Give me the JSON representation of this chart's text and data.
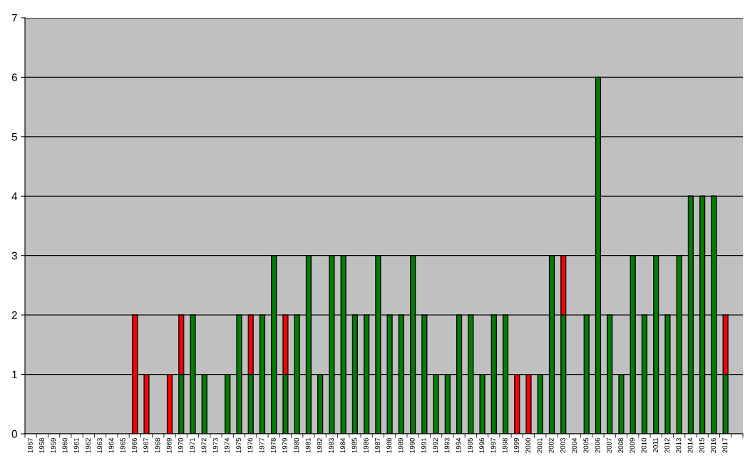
{
  "chart_data": {
    "type": "bar",
    "stacked": true,
    "categories": [
      "1957",
      "1958",
      "1959",
      "1960",
      "1961",
      "1962",
      "1963",
      "1964",
      "1965",
      "1966",
      "1967",
      "1968",
      "1969",
      "1970",
      "1971",
      "1972",
      "1973",
      "1974",
      "1975",
      "1976",
      "1977",
      "1978",
      "1979",
      "1980",
      "1981",
      "1982",
      "1983",
      "1984",
      "1985",
      "1986",
      "1987",
      "1988",
      "1989",
      "1990",
      "1991",
      "1992",
      "1993",
      "1994",
      "1995",
      "1996",
      "1997",
      "1998",
      "1999",
      "2000",
      "2001",
      "2002",
      "2003",
      "2004",
      "2005",
      "2006",
      "2007",
      "2008",
      "2009",
      "2010",
      "2011",
      "2012",
      "2013",
      "2014",
      "2015",
      "2016",
      "2017",
      null
    ],
    "series": [
      {
        "color": "#008000",
        "values": [
          0,
          0,
          0,
          0,
          0,
          0,
          0,
          0,
          0,
          0,
          0,
          0,
          0,
          1,
          2,
          1,
          0,
          1,
          2,
          1,
          2,
          3,
          1,
          2,
          3,
          1,
          3,
          3,
          2,
          2,
          3,
          2,
          2,
          3,
          2,
          1,
          1,
          2,
          2,
          1,
          2,
          2,
          0,
          0,
          1,
          3,
          2,
          0,
          2,
          6,
          2,
          1,
          3,
          2,
          3,
          2,
          3,
          4,
          4,
          4,
          1,
          0
        ]
      },
      {
        "color": "#ff0000",
        "values": [
          0,
          0,
          0,
          0,
          0,
          0,
          0,
          0,
          0,
          2,
          1,
          0,
          1,
          1,
          0,
          0,
          0,
          0,
          0,
          1,
          0,
          0,
          1,
          0,
          0,
          0,
          0,
          0,
          0,
          0,
          0,
          0,
          0,
          0,
          0,
          0,
          0,
          0,
          0,
          0,
          0,
          0,
          1,
          1,
          0,
          0,
          1,
          0,
          0,
          0,
          0,
          0,
          0,
          0,
          0,
          0,
          0,
          0,
          0,
          0,
          1,
          0
        ]
      }
    ],
    "ylim": [
      0,
      7
    ],
    "yticks": [
      0,
      1,
      2,
      3,
      4,
      5,
      6,
      7
    ],
    "grid": "y",
    "legend": false
  }
}
